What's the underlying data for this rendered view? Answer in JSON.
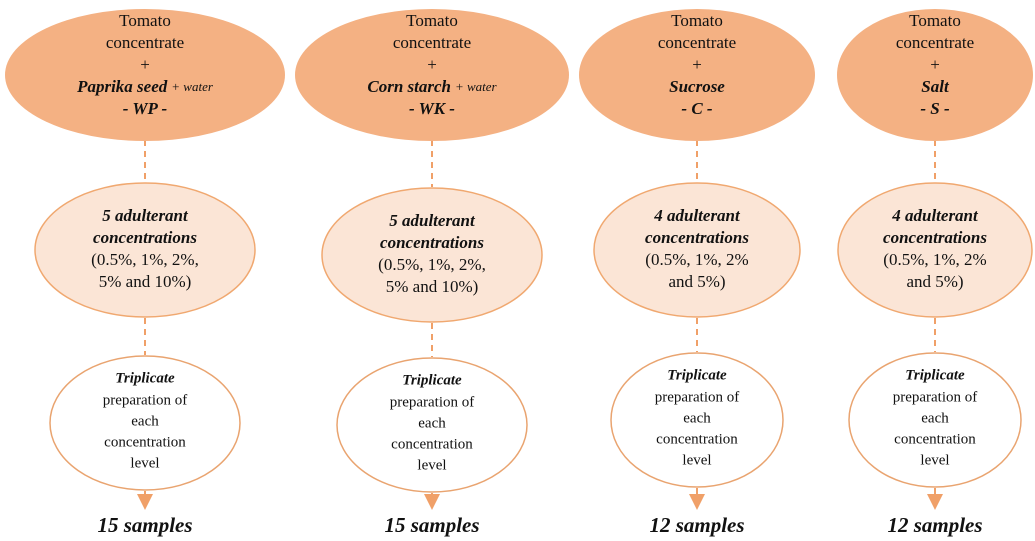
{
  "columns": [
    {
      "top": {
        "line1": "Tomato",
        "line2": "concentrate",
        "plus": "+",
        "adulterant": "Paprika seed",
        "extra": "+ water",
        "code": "- WP -"
      },
      "middle": {
        "title1": "5 adulterant",
        "title2": "concentrations",
        "detail1": "(0.5%, 1%, 2%,",
        "detail2": "5% and 10%)"
      },
      "bottom": {
        "title": "Triplicate",
        "lines": [
          "preparation of",
          "each",
          "concentration",
          "level"
        ]
      },
      "result": "15 samples"
    },
    {
      "top": {
        "line1": "Tomato",
        "line2": "concentrate",
        "plus": "+",
        "adulterant": "Corn starch",
        "extra": "+ water",
        "code": "- WK -"
      },
      "middle": {
        "title1": "5 adulterant",
        "title2": "concentrations",
        "detail1": "(0.5%, 1%, 2%,",
        "detail2": "5% and 10%)"
      },
      "bottom": {
        "title": "Triplicate",
        "lines": [
          "preparation of",
          "each",
          "concentration",
          "level"
        ]
      },
      "result": "15 samples"
    },
    {
      "top": {
        "line1": "Tomato",
        "line2": "concentrate",
        "plus": "+",
        "adulterant": "Sucrose",
        "code": "- C -"
      },
      "middle": {
        "title1": "4 adulterant",
        "title2": "concentrations",
        "detail1": "(0.5%, 1%, 2%",
        "detail2": "and 5%)"
      },
      "bottom": {
        "title": "Triplicate",
        "lines": [
          "preparation of",
          "each",
          "concentration",
          "level"
        ]
      },
      "result": "12 samples"
    },
    {
      "top": {
        "line1": "Tomato",
        "line2": "concentrate",
        "plus": "+",
        "adulterant": "Salt",
        "code": "- S -"
      },
      "middle": {
        "title1": "4 adulterant",
        "title2": "concentrations",
        "detail1": "(0.5%, 1%, 2%",
        "detail2": "and 5%)"
      },
      "bottom": {
        "title": "Triplicate",
        "lines": [
          "preparation of",
          "each",
          "concentration",
          "level"
        ]
      },
      "result": "12 samples"
    }
  ]
}
